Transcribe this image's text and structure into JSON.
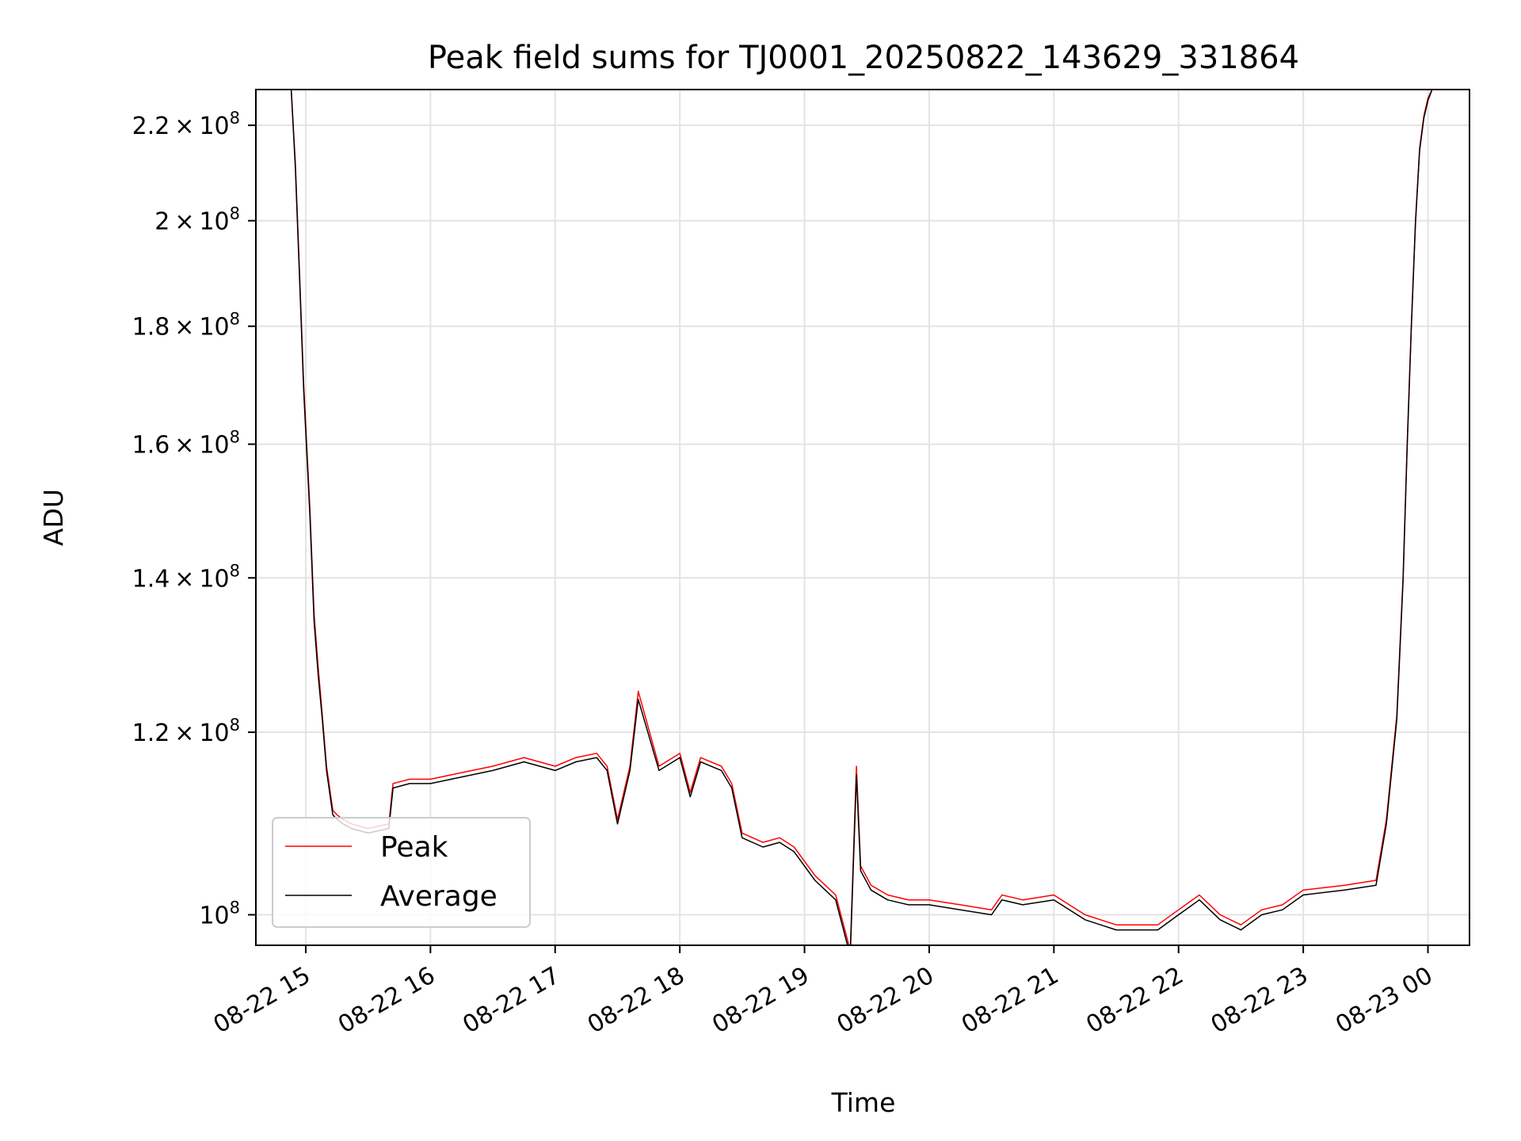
{
  "chart_data": {
    "type": "line",
    "title": "Peak field sums for TJ0001_20250822_143629_331864",
    "xlabel": "Time",
    "ylabel": "ADU",
    "xlim": [
      "2025-08-22 14:36",
      "2025-08-23 00:20"
    ],
    "ylim": [
      97000000,
      228000000
    ],
    "yscale": "log",
    "grid": true,
    "legend_position": "lower-left",
    "x_ticks": [
      "08-22 15",
      "08-22 16",
      "08-22 17",
      "08-22 18",
      "08-22 19",
      "08-22 20",
      "08-22 21",
      "08-22 22",
      "08-22 23",
      "08-23 00"
    ],
    "y_ticks": [
      {
        "value": 100000000,
        "mantissa": "",
        "base": "10",
        "exp": "8"
      },
      {
        "value": 120000000,
        "mantissa": "1.2",
        "base": "10",
        "exp": "8"
      },
      {
        "value": 140000000,
        "mantissa": "1.4",
        "base": "10",
        "exp": "8"
      },
      {
        "value": 160000000,
        "mantissa": "1.6",
        "base": "10",
        "exp": "8"
      },
      {
        "value": 180000000,
        "mantissa": "1.8",
        "base": "10",
        "exp": "8"
      },
      {
        "value": 200000000,
        "mantissa": "2",
        "base": "10",
        "exp": "8"
      },
      {
        "value": 220000000,
        "mantissa": "2.2",
        "base": "10",
        "exp": "8"
      }
    ],
    "x": [
      "2025-08-22 14:53",
      "2025-08-22 14:55",
      "2025-08-22 14:57",
      "2025-08-22 14:59",
      "2025-08-22 15:02",
      "2025-08-22 15:04",
      "2025-08-22 15:06",
      "2025-08-22 15:08",
      "2025-08-22 15:10",
      "2025-08-22 15:13",
      "2025-08-22 15:15",
      "2025-08-22 15:18",
      "2025-08-22 15:22",
      "2025-08-22 15:30",
      "2025-08-22 15:40",
      "2025-08-22 15:42",
      "2025-08-22 15:50",
      "2025-08-22 16:00",
      "2025-08-22 16:10",
      "2025-08-22 16:20",
      "2025-08-22 16:30",
      "2025-08-22 16:45",
      "2025-08-22 17:00",
      "2025-08-22 17:10",
      "2025-08-22 17:20",
      "2025-08-22 17:25",
      "2025-08-22 17:30",
      "2025-08-22 17:36",
      "2025-08-22 17:40",
      "2025-08-22 17:50",
      "2025-08-22 18:00",
      "2025-08-22 18:05",
      "2025-08-22 18:10",
      "2025-08-22 18:20",
      "2025-08-22 18:25",
      "2025-08-22 18:30",
      "2025-08-22 18:40",
      "2025-08-22 18:48",
      "2025-08-22 18:55",
      "2025-08-22 19:05",
      "2025-08-22 19:15",
      "2025-08-22 19:22",
      "2025-08-22 19:25",
      "2025-08-22 19:27",
      "2025-08-22 19:32",
      "2025-08-22 19:40",
      "2025-08-22 19:50",
      "2025-08-22 20:00",
      "2025-08-22 20:15",
      "2025-08-22 20:30",
      "2025-08-22 20:35",
      "2025-08-22 20:45",
      "2025-08-22 21:00",
      "2025-08-22 21:15",
      "2025-08-22 21:30",
      "2025-08-22 21:40",
      "2025-08-22 21:50",
      "2025-08-22 22:00",
      "2025-08-22 22:10",
      "2025-08-22 22:20",
      "2025-08-22 22:30",
      "2025-08-22 22:40",
      "2025-08-22 22:50",
      "2025-08-22 23:00",
      "2025-08-22 23:20",
      "2025-08-22 23:35",
      "2025-08-22 23:40",
      "2025-08-22 23:45",
      "2025-08-22 23:48",
      "2025-08-22 23:50",
      "2025-08-22 23:52",
      "2025-08-22 23:54",
      "2025-08-22 23:56",
      "2025-08-22 23:58",
      "2025-08-23 00:00",
      "2025-08-23 00:02",
      "2025-08-23 00:04"
    ],
    "series": [
      {
        "name": "Peak",
        "color": "#ff0000",
        "values": [
          228000000,
          212000000,
          190000000,
          170000000,
          150000000,
          135000000,
          128000000,
          122000000,
          116000000,
          111000000,
          110500000,
          110000000,
          109500000,
          109000000,
          109500000,
          114000000,
          114500000,
          114500000,
          115000000,
          115500000,
          116000000,
          117000000,
          116000000,
          117000000,
          117500000,
          116000000,
          110000000,
          116000000,
          125000000,
          116000000,
          117500000,
          113000000,
          117000000,
          116000000,
          114000000,
          108500000,
          107500000,
          108000000,
          107000000,
          104000000,
          102000000,
          96500000,
          116000000,
          105000000,
          103000000,
          102000000,
          101500000,
          101500000,
          101000000,
          100500000,
          102000000,
          101500000,
          102000000,
          100000000,
          99000000,
          99000000,
          99000000,
          100500000,
          102000000,
          100000000,
          99000000,
          100500000,
          101000000,
          102500000,
          103000000,
          103500000,
          110000000,
          122000000,
          140000000,
          160000000,
          180000000,
          200000000,
          215000000,
          222000000,
          226000000,
          228000000,
          228000000
        ]
      },
      {
        "name": "Average",
        "color": "#000000",
        "values": [
          228000000,
          211000000,
          189000000,
          169000000,
          149000000,
          134000000,
          127000000,
          121500000,
          115500000,
          110500000,
          110000000,
          109500000,
          109000000,
          108500000,
          109000000,
          113500000,
          114000000,
          114000000,
          114500000,
          115000000,
          115500000,
          116500000,
          115500000,
          116500000,
          117000000,
          115500000,
          109500000,
          115500000,
          124000000,
          115500000,
          117000000,
          112500000,
          116500000,
          115500000,
          113500000,
          108000000,
          107000000,
          107500000,
          106500000,
          103500000,
          101500000,
          96000000,
          115000000,
          104500000,
          102500000,
          101500000,
          101000000,
          101000000,
          100500000,
          100000000,
          101500000,
          101000000,
          101500000,
          99500000,
          98500000,
          98500000,
          98500000,
          100000000,
          101500000,
          99500000,
          98500000,
          100000000,
          100500000,
          102000000,
          102500000,
          103000000,
          109500000,
          121500000,
          139500000,
          159500000,
          179500000,
          199500000,
          214500000,
          221500000,
          225500000,
          228000000,
          228000000
        ]
      }
    ]
  }
}
